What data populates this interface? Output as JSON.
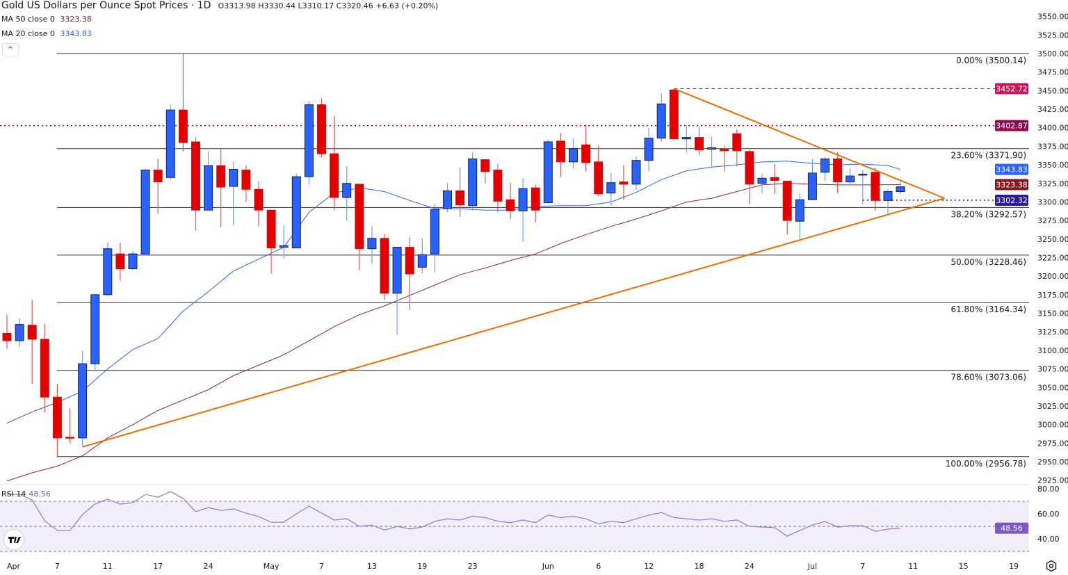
{
  "header": {
    "title": "Gold US Dollars per Ounce Spot Prices · 1D",
    "ohlc": "O3313.98 H3330.44 L3310.17 C3320.46 +6.63 (+0.20%)"
  },
  "indicators": {
    "ma50": {
      "label": "MA 50 close 0",
      "value": "3323.38",
      "color": "#8e2431"
    },
    "ma20": {
      "label": "MA 20 close 0",
      "value": "3343.83",
      "color": "#2962ff"
    },
    "rsi": {
      "label": "RSI 14",
      "value": "48.56",
      "color": "#7e57c2"
    }
  },
  "controls": {
    "collapse_icon": "chevron-up-icon",
    "collapse_glyph": "^",
    "settings_icon": "gear-icon",
    "logo": "TV"
  },
  "chart_data": {
    "type": "candlestick",
    "title": "Gold US Dollars per Ounce Spot Prices · 1D",
    "colors": {
      "up": "#2962ff",
      "down": "#e50000",
      "ma20": "#2962ff",
      "ma50": "#8e2431",
      "trendline": "#ef6c00",
      "rsi": "#9575cd"
    },
    "ylim": [
      2912,
      3562
    ],
    "y_ticks": [
      "3550.00",
      "3525.00",
      "3500.00",
      "3475.00",
      "3450.00",
      "3425.00",
      "3400.00",
      "3375.00",
      "3350.00",
      "3325.00",
      "3300.00",
      "3275.00",
      "3250.00",
      "3225.00",
      "3200.00",
      "3175.00",
      "3150.00",
      "3125.00",
      "3100.00",
      "3075.00",
      "3050.00",
      "3025.00",
      "3000.00",
      "2975.00",
      "2950.00",
      "2925.00"
    ],
    "x_labels": [
      {
        "i": 0,
        "t": "Apr"
      },
      {
        "i": 4,
        "t": "7"
      },
      {
        "i": 8,
        "t": "11"
      },
      {
        "i": 12,
        "t": "17"
      },
      {
        "i": 16,
        "t": "24"
      },
      {
        "i": 21,
        "t": "May"
      },
      {
        "i": 25,
        "t": "7"
      },
      {
        "i": 29,
        "t": "13"
      },
      {
        "i": 33,
        "t": "19"
      },
      {
        "i": 37,
        "t": "23"
      },
      {
        "i": 43,
        "t": "Jun"
      },
      {
        "i": 47,
        "t": "6"
      },
      {
        "i": 51,
        "t": "12"
      },
      {
        "i": 55,
        "t": "18"
      },
      {
        "i": 59,
        "t": "24"
      },
      {
        "i": 64,
        "t": "Jul"
      },
      {
        "i": 68,
        "t": "7"
      },
      {
        "i": 72,
        "t": "11"
      },
      {
        "i": 76,
        "t": "15"
      },
      {
        "i": 80,
        "t": "19"
      }
    ],
    "ohlc": [
      [
        3123,
        3148,
        3102,
        3113
      ],
      [
        3113,
        3143,
        3105,
        3135
      ],
      [
        3134,
        3168,
        3055,
        3115
      ],
      [
        3115,
        3136,
        3016,
        3037
      ],
      [
        3037,
        3055,
        2957,
        2982
      ],
      [
        2983,
        3022,
        2975,
        2982
      ],
      [
        2982,
        3099,
        2970,
        3082
      ],
      [
        3082,
        3176,
        3072,
        3175
      ],
      [
        3175,
        3245,
        3174,
        3237
      ],
      [
        3230,
        3245,
        3194,
        3210
      ],
      [
        3210,
        3234,
        3208,
        3230
      ],
      [
        3230,
        3345,
        3228,
        3343
      ],
      [
        3343,
        3358,
        3284,
        3327
      ],
      [
        3333,
        3431,
        3330,
        3424
      ],
      [
        3424,
        3500,
        3368,
        3380
      ],
      [
        3381,
        3387,
        3261,
        3289
      ],
      [
        3289,
        3368,
        3289,
        3349
      ],
      [
        3349,
        3371,
        3266,
        3320
      ],
      [
        3321,
        3354,
        3269,
        3344
      ],
      [
        3343,
        3349,
        3300,
        3317
      ],
      [
        3317,
        3328,
        3267,
        3289
      ],
      [
        3289,
        3289,
        3203,
        3238
      ],
      [
        3239,
        3269,
        3223,
        3241
      ],
      [
        3238,
        3338,
        3238,
        3334
      ],
      [
        3334,
        3436,
        3324,
        3431
      ],
      [
        3431,
        3440,
        3360,
        3365
      ],
      [
        3365,
        3416,
        3289,
        3306
      ],
      [
        3306,
        3348,
        3275,
        3325
      ],
      [
        3324,
        3324,
        3208,
        3237
      ],
      [
        3237,
        3267,
        3217,
        3251
      ],
      [
        3251,
        3257,
        3168,
        3177
      ],
      [
        3177,
        3239,
        3121,
        3239
      ],
      [
        3239,
        3252,
        3155,
        3203
      ],
      [
        3212,
        3251,
        3204,
        3229
      ],
      [
        3230,
        3297,
        3205,
        3290
      ],
      [
        3291,
        3326,
        3286,
        3315
      ],
      [
        3315,
        3346,
        3280,
        3296
      ],
      [
        3295,
        3367,
        3288,
        3358
      ],
      [
        3357,
        3358,
        3325,
        3341
      ],
      [
        3343,
        3351,
        3286,
        3301
      ],
      [
        3303,
        3326,
        3277,
        3288
      ],
      [
        3288,
        3332,
        3246,
        3318
      ],
      [
        3319,
        3323,
        3272,
        3289
      ],
      [
        3299,
        3384,
        3299,
        3381
      ],
      [
        3382,
        3393,
        3334,
        3354
      ],
      [
        3354,
        3386,
        3345,
        3372
      ],
      [
        3377,
        3404,
        3341,
        3353
      ],
      [
        3354,
        3376,
        3308,
        3311
      ],
      [
        3312,
        3339,
        3295,
        3326
      ],
      [
        3327,
        3350,
        3303,
        3324
      ],
      [
        3324,
        3361,
        3316,
        3356
      ],
      [
        3356,
        3400,
        3341,
        3386
      ],
      [
        3386,
        3447,
        3381,
        3432
      ],
      [
        3451,
        3452.72,
        3385,
        3385
      ],
      [
        3385,
        3403,
        3367,
        3387
      ],
      [
        3387,
        3401,
        3363,
        3370
      ],
      [
        3371,
        3388,
        3348,
        3373
      ],
      [
        3371,
        3375,
        3341,
        3369
      ],
      [
        3392,
        3398,
        3348,
        3369
      ],
      [
        3368,
        3370,
        3297,
        3324
      ],
      [
        3325,
        3338,
        3312,
        3332
      ],
      [
        3333,
        3351,
        3311,
        3329
      ],
      [
        3328,
        3328,
        3256,
        3275
      ],
      [
        3274,
        3311,
        3250,
        3303
      ],
      [
        3303,
        3358,
        3303,
        3339
      ],
      [
        3340,
        3360,
        3328,
        3358
      ],
      [
        3358,
        3367,
        3312,
        3327
      ],
      [
        3327,
        3345,
        3325,
        3335
      ],
      [
        3337,
        3343,
        3297,
        3337.5
      ],
      [
        3340,
        3346,
        3288,
        3302
      ],
      [
        3302,
        3317,
        3284,
        3314
      ],
      [
        3313.98,
        3330.44,
        3310.17,
        3320.46
      ]
    ],
    "ma20": [
      [
        0,
        3002
      ],
      [
        2,
        3017
      ],
      [
        4,
        3030
      ],
      [
        6,
        3045
      ],
      [
        8,
        3075
      ],
      [
        10,
        3101
      ],
      [
        12,
        3116
      ],
      [
        14,
        3153
      ],
      [
        16,
        3179
      ],
      [
        18,
        3207
      ],
      [
        20,
        3223
      ],
      [
        22,
        3239
      ],
      [
        24,
        3286
      ],
      [
        26,
        3312
      ],
      [
        28,
        3319
      ],
      [
        30,
        3314
      ],
      [
        32,
        3302
      ],
      [
        34,
        3291
      ],
      [
        36,
        3291
      ],
      [
        38,
        3289
      ],
      [
        40,
        3289
      ],
      [
        42,
        3294
      ],
      [
        44,
        3295
      ],
      [
        46,
        3295
      ],
      [
        48,
        3300
      ],
      [
        50,
        3313
      ],
      [
        52,
        3330
      ],
      [
        54,
        3342
      ],
      [
        56,
        3347
      ],
      [
        58,
        3350
      ],
      [
        60,
        3354
      ],
      [
        62,
        3355
      ],
      [
        64,
        3352
      ],
      [
        66,
        3350
      ],
      [
        68,
        3351
      ],
      [
        70,
        3349
      ],
      [
        71,
        3343.83
      ]
    ],
    "ma50": [
      [
        0,
        2924
      ],
      [
        2,
        2935
      ],
      [
        4,
        2944
      ],
      [
        6,
        2958
      ],
      [
        8,
        2982
      ],
      [
        10,
        3000
      ],
      [
        12,
        3019
      ],
      [
        14,
        3033
      ],
      [
        16,
        3047
      ],
      [
        18,
        3066
      ],
      [
        20,
        3080
      ],
      [
        22,
        3094
      ],
      [
        24,
        3113
      ],
      [
        26,
        3132
      ],
      [
        28,
        3148
      ],
      [
        30,
        3160
      ],
      [
        32,
        3174
      ],
      [
        34,
        3188
      ],
      [
        36,
        3202
      ],
      [
        38,
        3211
      ],
      [
        40,
        3221
      ],
      [
        42,
        3230
      ],
      [
        44,
        3244
      ],
      [
        46,
        3256
      ],
      [
        48,
        3267
      ],
      [
        50,
        3277
      ],
      [
        52,
        3288
      ],
      [
        54,
        3300
      ],
      [
        56,
        3305
      ],
      [
        58,
        3314
      ],
      [
        60,
        3323
      ],
      [
        62,
        3325
      ],
      [
        64,
        3324
      ],
      [
        66,
        3323
      ],
      [
        68,
        3323
      ],
      [
        71,
        3323.38
      ]
    ],
    "rsi": [
      75.5,
      75.5,
      71,
      54.4,
      46.7,
      46.7,
      59.4,
      67.8,
      71.7,
      67.8,
      68.9,
      75.5,
      73.3,
      77.8,
      72.2,
      61.7,
      65,
      62.7,
      63.9,
      60.6,
      57.8,
      53.3,
      53.3,
      60,
      66.1,
      60.6,
      55,
      56.1,
      50,
      51,
      47,
      50,
      48,
      49.5,
      54,
      56,
      55,
      58,
      57,
      54,
      53,
      55,
      53,
      59,
      57,
      58,
      56,
      52,
      54,
      53,
      56,
      59,
      61,
      57,
      56,
      55,
      56,
      54,
      55,
      50,
      49.4,
      49,
      42.2,
      46.7,
      51,
      53.9,
      49.4,
      50.5,
      50.5,
      46,
      47.8,
      48.56
    ],
    "rsi_ticks": [
      "80.00",
      "60.00",
      "40.00"
    ],
    "rsi_levels": [
      70,
      50,
      30
    ],
    "rsi_ylim": [
      23,
      83
    ],
    "fib": [
      {
        "level": "0.00%",
        "price": 3500.14,
        "label": "0.00% (3500.14)"
      },
      {
        "level": "23.60%",
        "price": 3371.9,
        "label": "23.60% (3371.90)"
      },
      {
        "level": "38.20%",
        "price": 3292.57,
        "label": "38.20% (3292.57)"
      },
      {
        "level": "50.00%",
        "price": 3228.46,
        "label": "50.00% (3228.46)"
      },
      {
        "level": "61.80%",
        "price": 3164.34,
        "label": "61.80% (3164.34)"
      },
      {
        "level": "78.60%",
        "price": 3073.06,
        "label": "78.60% (3073.06)"
      },
      {
        "level": "100.00%",
        "price": 2956.78,
        "label": "100.00% (2956.78)"
      }
    ],
    "hlines": [
      {
        "price": 3452.72,
        "label": "3452.72",
        "color": "#c2185b",
        "style": "dashed",
        "from": 53
      },
      {
        "price": 3402.87,
        "label": "3402.87",
        "color": "#880e4f",
        "style": "dotted",
        "from": -1
      },
      {
        "price": 3302.32,
        "label": "3302.32",
        "color": "#311b92",
        "style": "dotted",
        "from": 68
      }
    ],
    "price_badges": [
      {
        "price": 3343.83,
        "label": "3343.83",
        "color": "#2962ff"
      },
      {
        "price": 3323.38,
        "label": "3323.38",
        "color": "#801922"
      }
    ],
    "trendlines": [
      {
        "name": "upper-trendline",
        "from": [
          53,
          3452.72
        ],
        "to": [
          74.5,
          3305
        ]
      },
      {
        "name": "lower-trendline",
        "from": [
          6,
          2970
        ],
        "to": [
          74.5,
          3305
        ]
      }
    ]
  }
}
